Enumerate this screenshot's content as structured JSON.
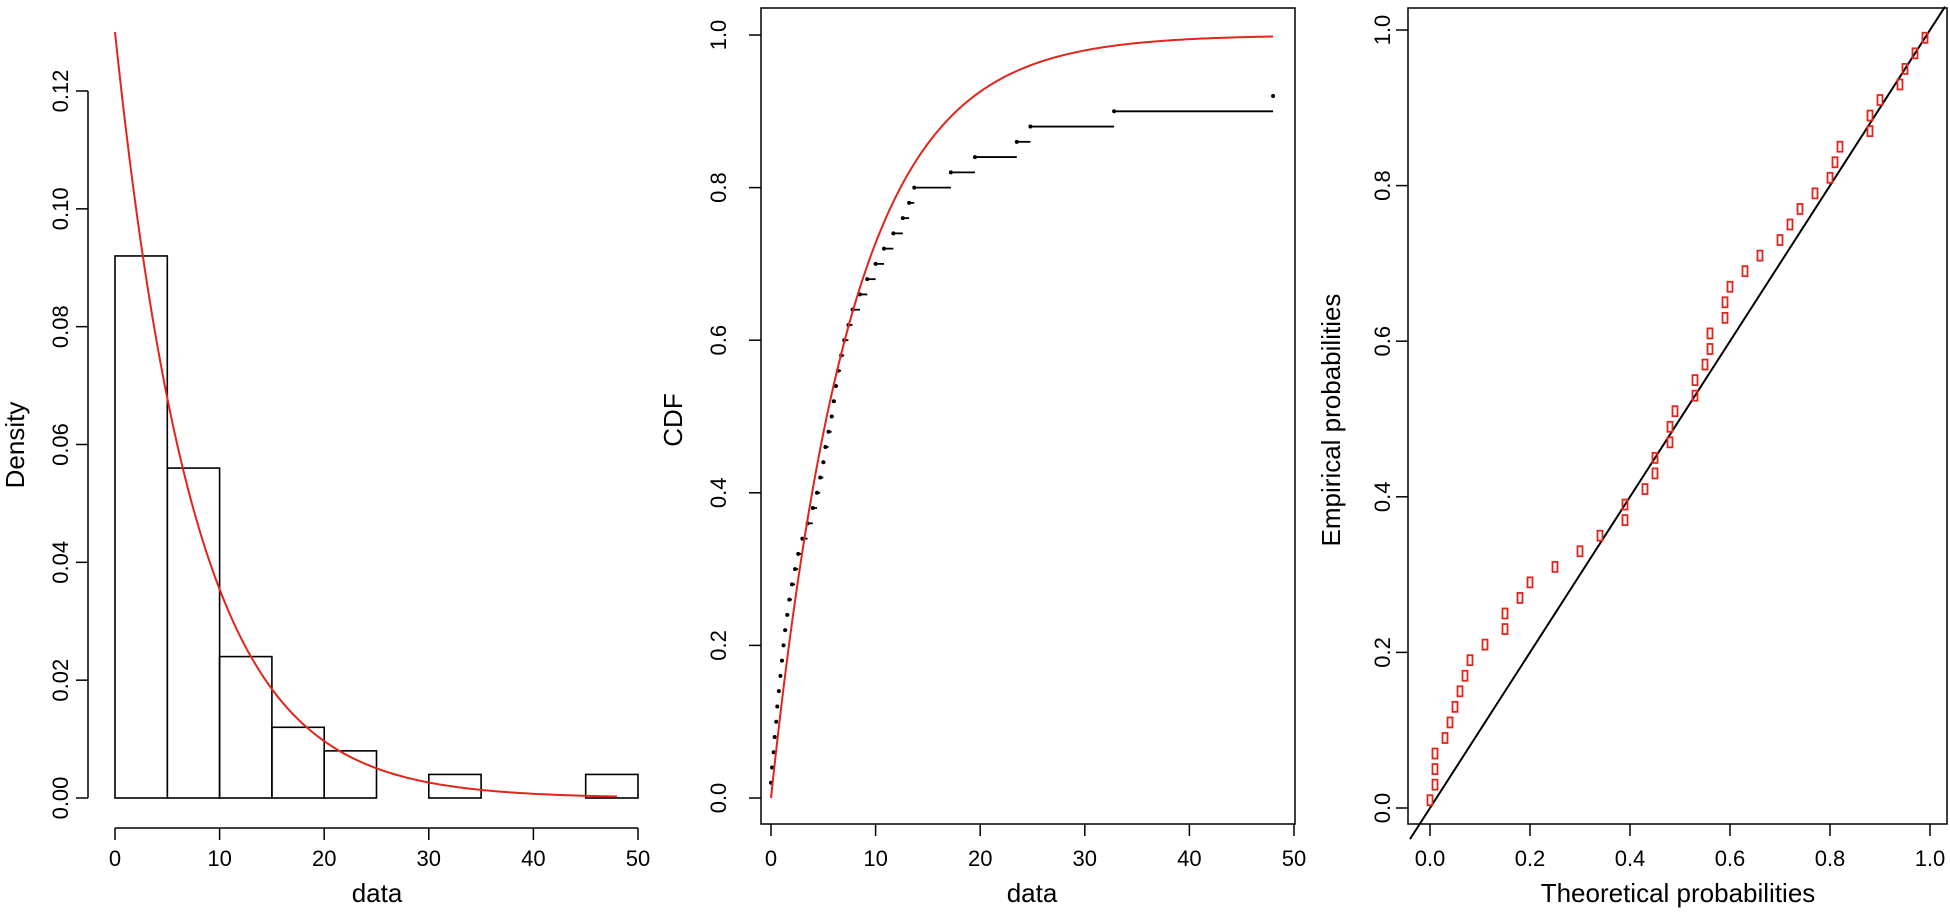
{
  "chart_data": [
    {
      "type": "bar",
      "subtype": "histogram-with-density-curve",
      "xlabel": "data",
      "ylabel": "Density",
      "xlim": [
        0,
        50
      ],
      "ylim": [
        0,
        0.13
      ],
      "xticks": [
        "0",
        "10",
        "20",
        "30",
        "40",
        "50"
      ],
      "yticks": [
        "0.00",
        "0.02",
        "0.04",
        "0.06",
        "0.08",
        "0.10",
        "0.12"
      ],
      "grid": false,
      "bins": [
        {
          "from": 0,
          "to": 5,
          "density": 0.092
        },
        {
          "from": 5,
          "to": 10,
          "density": 0.056
        },
        {
          "from": 10,
          "to": 15,
          "density": 0.024
        },
        {
          "from": 15,
          "to": 20,
          "density": 0.012
        },
        {
          "from": 20,
          "to": 25,
          "density": 0.008
        },
        {
          "from": 25,
          "to": 30,
          "density": 0.0
        },
        {
          "from": 30,
          "to": 35,
          "density": 0.004
        },
        {
          "from": 35,
          "to": 40,
          "density": 0.0
        },
        {
          "from": 40,
          "to": 45,
          "density": 0.0
        },
        {
          "from": 45,
          "to": 50,
          "density": 0.004
        }
      ],
      "curve": {
        "type": "exponential-density",
        "rate": 0.13,
        "x_range": [
          0,
          48
        ],
        "color": "#e3241b"
      },
      "bar_outline_color": "#000000"
    },
    {
      "type": "line",
      "subtype": "empirical-cdf-with-fitted-cdf",
      "xlabel": "data",
      "ylabel": "CDF",
      "xlim": [
        0,
        50
      ],
      "ylim": [
        0,
        1
      ],
      "xticks": [
        "0",
        "10",
        "20",
        "30",
        "40",
        "50"
      ],
      "yticks": [
        "0.0",
        "0.2",
        "0.4",
        "0.6",
        "0.8",
        "1.0"
      ],
      "grid": false,
      "ecdf_x": [
        0.0,
        0.1,
        0.25,
        0.35,
        0.5,
        0.6,
        0.75,
        0.9,
        1.05,
        1.2,
        1.35,
        1.55,
        1.75,
        2.0,
        2.3,
        2.6,
        3.0,
        3.5,
        4.0,
        4.4,
        4.7,
        5.0,
        5.2,
        5.5,
        5.8,
        6.0,
        6.2,
        6.4,
        6.7,
        7.0,
        7.4,
        7.8,
        8.5,
        9.2,
        10.0,
        10.8,
        11.7,
        12.6,
        13.2,
        13.7,
        17.2,
        19.5,
        23.5,
        24.8,
        32.8,
        48.0
      ],
      "ecdf_step": 0.02,
      "ecdf_color": "#000000",
      "fitted": {
        "type": "exponential-cdf",
        "rate": 0.13,
        "x_range": [
          0,
          48
        ],
        "color": "#e3241b"
      }
    },
    {
      "type": "scatter",
      "subtype": "pp-plot",
      "xlabel": "Theoretical probabilities",
      "ylabel": "Empirical probabilities",
      "xlim": [
        0,
        1
      ],
      "ylim": [
        0,
        1
      ],
      "xticks": [
        "0.0",
        "0.2",
        "0.4",
        "0.6",
        "0.8",
        "1.0"
      ],
      "yticks": [
        "0.0",
        "0.2",
        "0.4",
        "0.6",
        "0.8",
        "1.0"
      ],
      "grid": false,
      "reference_line": {
        "from": [
          0,
          0
        ],
        "to": [
          1,
          1
        ],
        "color": "#000000"
      },
      "point_color": "#e3241b",
      "points": [
        [
          0.0,
          0.01
        ],
        [
          0.01,
          0.03
        ],
        [
          0.01,
          0.05
        ],
        [
          0.01,
          0.07
        ],
        [
          0.03,
          0.09
        ],
        [
          0.04,
          0.11
        ],
        [
          0.05,
          0.13
        ],
        [
          0.06,
          0.15
        ],
        [
          0.07,
          0.17
        ],
        [
          0.08,
          0.19
        ],
        [
          0.11,
          0.21
        ],
        [
          0.15,
          0.23
        ],
        [
          0.15,
          0.25
        ],
        [
          0.18,
          0.27
        ],
        [
          0.2,
          0.29
        ],
        [
          0.25,
          0.31
        ],
        [
          0.3,
          0.33
        ],
        [
          0.34,
          0.35
        ],
        [
          0.39,
          0.37
        ],
        [
          0.39,
          0.39
        ],
        [
          0.43,
          0.41
        ],
        [
          0.45,
          0.43
        ],
        [
          0.45,
          0.45
        ],
        [
          0.48,
          0.47
        ],
        [
          0.48,
          0.49
        ],
        [
          0.49,
          0.51
        ],
        [
          0.53,
          0.53
        ],
        [
          0.53,
          0.55
        ],
        [
          0.55,
          0.57
        ],
        [
          0.56,
          0.59
        ],
        [
          0.56,
          0.61
        ],
        [
          0.59,
          0.63
        ],
        [
          0.59,
          0.65
        ],
        [
          0.6,
          0.67
        ],
        [
          0.63,
          0.69
        ],
        [
          0.66,
          0.71
        ],
        [
          0.7,
          0.73
        ],
        [
          0.72,
          0.75
        ],
        [
          0.74,
          0.77
        ],
        [
          0.77,
          0.79
        ],
        [
          0.8,
          0.81
        ],
        [
          0.81,
          0.83
        ],
        [
          0.82,
          0.85
        ],
        [
          0.88,
          0.87
        ],
        [
          0.88,
          0.89
        ],
        [
          0.9,
          0.91
        ],
        [
          0.94,
          0.93
        ],
        [
          0.95,
          0.95
        ],
        [
          0.97,
          0.97
        ],
        [
          0.99,
          0.99
        ]
      ]
    }
  ]
}
